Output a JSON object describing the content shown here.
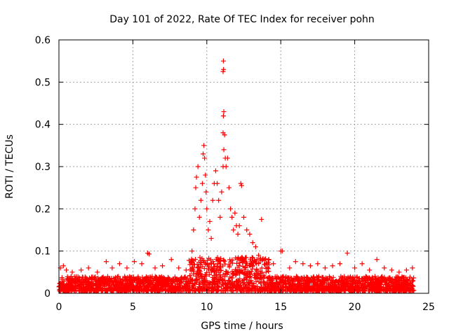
{
  "chart_data": {
    "type": "scatter",
    "title": "Day 101 of 2022, Rate Of TEC Index for receiver pohn",
    "xlabel": "GPS time / hours",
    "ylabel": "ROTI / TECUs",
    "xlim": [
      0,
      25
    ],
    "ylim": [
      0,
      0.6
    ],
    "xticks": [
      0,
      5,
      10,
      15,
      20,
      25
    ],
    "yticks": [
      0,
      0.1,
      0.2,
      0.3,
      0.4,
      0.5,
      0.6
    ],
    "xtick_labels": [
      "0",
      "5",
      "10",
      "15",
      "20",
      "25"
    ],
    "ytick_labels": [
      "0",
      "0.1",
      "0.2",
      "0.3",
      "0.4",
      "0.5",
      "0.6"
    ],
    "grid": true,
    "marker": "plus",
    "marker_color": "#ff0000",
    "notes": "Dense band of points near 0.01-0.04 TECU across 0-24 h; activity peak between about 9 and 14 h.",
    "series": [
      {
        "name": "ROTI",
        "points": [
          [
            0.1,
            0.06
          ],
          [
            0.3,
            0.065
          ],
          [
            0.5,
            0.055
          ],
          [
            0.9,
            0.05
          ],
          [
            1.5,
            0.055
          ],
          [
            2.0,
            0.06
          ],
          [
            2.6,
            0.05
          ],
          [
            3.2,
            0.075
          ],
          [
            3.6,
            0.06
          ],
          [
            4.1,
            0.07
          ],
          [
            4.6,
            0.06
          ],
          [
            5.1,
            0.075
          ],
          [
            5.6,
            0.07
          ],
          [
            6.0,
            0.095
          ],
          [
            6.1,
            0.093
          ],
          [
            6.5,
            0.06
          ],
          [
            7.0,
            0.065
          ],
          [
            7.6,
            0.08
          ],
          [
            8.1,
            0.06
          ],
          [
            8.6,
            0.055
          ],
          [
            9.0,
            0.1
          ],
          [
            9.1,
            0.15
          ],
          [
            9.2,
            0.2
          ],
          [
            9.25,
            0.25
          ],
          [
            9.3,
            0.275
          ],
          [
            9.4,
            0.3
          ],
          [
            9.5,
            0.18
          ],
          [
            9.6,
            0.22
          ],
          [
            9.7,
            0.26
          ],
          [
            9.75,
            0.33
          ],
          [
            9.8,
            0.35
          ],
          [
            9.85,
            0.32
          ],
          [
            9.9,
            0.28
          ],
          [
            9.95,
            0.24
          ],
          [
            10.0,
            0.2
          ],
          [
            10.1,
            0.15
          ],
          [
            10.2,
            0.17
          ],
          [
            10.3,
            0.13
          ],
          [
            10.4,
            0.22
          ],
          [
            10.5,
            0.26
          ],
          [
            10.6,
            0.29
          ],
          [
            10.7,
            0.26
          ],
          [
            10.8,
            0.22
          ],
          [
            10.9,
            0.18
          ],
          [
            11.0,
            0.24
          ],
          [
            11.1,
            0.3
          ],
          [
            11.15,
            0.34
          ],
          [
            11.1,
            0.38
          ],
          [
            11.12,
            0.42
          ],
          [
            11.15,
            0.43
          ],
          [
            11.1,
            0.525
          ],
          [
            11.13,
            0.53
          ],
          [
            11.12,
            0.55
          ],
          [
            11.2,
            0.375
          ],
          [
            11.25,
            0.32
          ],
          [
            11.3,
            0.3
          ],
          [
            11.4,
            0.32
          ],
          [
            11.5,
            0.25
          ],
          [
            11.6,
            0.2
          ],
          [
            11.7,
            0.18
          ],
          [
            11.8,
            0.15
          ],
          [
            11.9,
            0.19
          ],
          [
            12.0,
            0.16
          ],
          [
            12.1,
            0.14
          ],
          [
            12.2,
            0.16
          ],
          [
            12.3,
            0.26
          ],
          [
            12.35,
            0.255
          ],
          [
            12.5,
            0.18
          ],
          [
            12.7,
            0.15
          ],
          [
            12.9,
            0.14
          ],
          [
            13.1,
            0.12
          ],
          [
            13.3,
            0.11
          ],
          [
            13.5,
            0.09
          ],
          [
            13.7,
            0.175
          ],
          [
            13.9,
            0.08
          ],
          [
            14.5,
            0.07
          ],
          [
            15.0,
            0.1
          ],
          [
            15.1,
            0.1
          ],
          [
            15.6,
            0.06
          ],
          [
            16.0,
            0.075
          ],
          [
            16.5,
            0.07
          ],
          [
            17.0,
            0.065
          ],
          [
            17.5,
            0.07
          ],
          [
            18.0,
            0.06
          ],
          [
            18.5,
            0.065
          ],
          [
            19.0,
            0.07
          ],
          [
            19.5,
            0.095
          ],
          [
            20.0,
            0.06
          ],
          [
            20.5,
            0.07
          ],
          [
            21.0,
            0.055
          ],
          [
            21.5,
            0.08
          ],
          [
            22.0,
            0.06
          ],
          [
            22.5,
            0.055
          ],
          [
            23.0,
            0.05
          ],
          [
            23.5,
            0.055
          ],
          [
            23.9,
            0.06
          ]
        ]
      }
    ]
  }
}
